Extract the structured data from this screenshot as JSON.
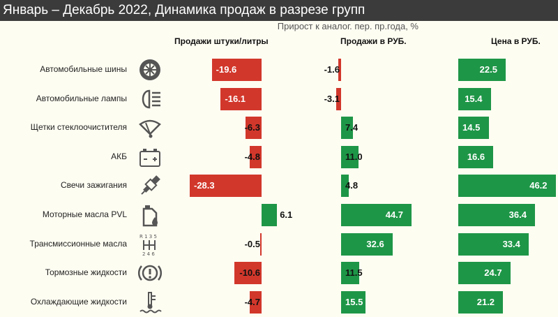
{
  "title": "Январь – Декабрь 2022, Динамика продаж в разрезе групп",
  "colors": {
    "negative": "#d2372b",
    "positive": "#1e9647",
    "header": "#3b3b3b"
  },
  "chart_data": {
    "type": "bar",
    "title": "Январь – Декабрь 2022, Динамика продаж в разрезе групп",
    "subtitle": "Прирост к аналог. пер. пр.года, %",
    "categories": [
      "Автомобильные шины",
      "Автомобильные лампы",
      "Щетки стеклоочистителя",
      "АКБ",
      "Свечи зажигания",
      "Моторные масла PVL",
      "Трансмиссионные масла",
      "Тормозные жидкости",
      "Охлаждающие жидкости"
    ],
    "icons": [
      "tire-icon",
      "headlight-icon",
      "wiper-icon",
      "battery-icon",
      "spark-plug-icon",
      "oil-canister-icon",
      "gearbox-icon",
      "brake-warning-icon",
      "coolant-icon"
    ],
    "series": [
      {
        "name": "Продажи штуки/литры",
        "values": [
          -19.6,
          -16.1,
          -6.3,
          -4.8,
          -28.3,
          6.1,
          -0.5,
          -10.6,
          -4.7
        ]
      },
      {
        "name": "Продажи в РУБ.",
        "values": [
          -1.6,
          -3.1,
          7.4,
          11.0,
          4.8,
          44.7,
          32.6,
          11.5,
          15.5
        ]
      },
      {
        "name": "Цена в РУБ.",
        "values": [
          22.5,
          15.4,
          14.5,
          16.6,
          46.2,
          36.4,
          33.4,
          24.7,
          21.2
        ]
      }
    ]
  }
}
